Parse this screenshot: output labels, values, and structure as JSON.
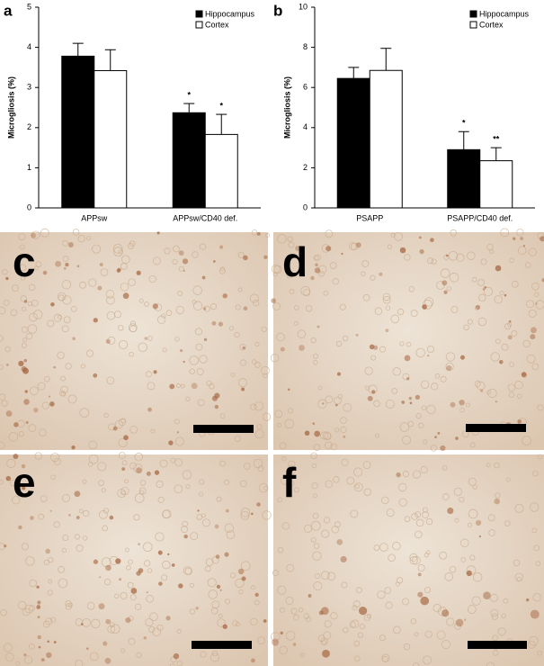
{
  "chart_data": [
    {
      "type": "bar",
      "panel": "a",
      "ylabel": "Microgliosis (%)",
      "categories": [
        "APPsw",
        "APPsw/CD40 def."
      ],
      "series": [
        {
          "name": "Hippocampus",
          "color": "#000000",
          "values": [
            3.78,
            2.37
          ],
          "errors": [
            0.32,
            0.23
          ],
          "marks": [
            null,
            "*"
          ]
        },
        {
          "name": "Cortex",
          "color": "#ffffff",
          "values": [
            3.42,
            1.83
          ],
          "errors": [
            0.52,
            0.5
          ],
          "marks": [
            null,
            "*"
          ]
        }
      ],
      "ylim": [
        0,
        5
      ],
      "yticks": [
        0,
        1,
        2,
        3,
        4,
        5
      ],
      "legend": "upper right"
    },
    {
      "type": "bar",
      "panel": "b",
      "ylabel": "Microgliosis (%)",
      "categories": [
        "PSAPP",
        "PSAPP/CD40 def."
      ],
      "series": [
        {
          "name": "Hippocampus",
          "color": "#000000",
          "values": [
            6.45,
            2.9
          ],
          "errors": [
            0.55,
            0.9
          ],
          "marks": [
            null,
            "*"
          ]
        },
        {
          "name": "Cortex",
          "color": "#ffffff",
          "values": [
            6.85,
            2.35
          ],
          "errors": [
            1.1,
            0.65
          ],
          "marks": [
            null,
            "**"
          ]
        }
      ],
      "ylim": [
        0,
        10
      ],
      "yticks": [
        0,
        2,
        4,
        6,
        8,
        10
      ],
      "legend": "upper right"
    }
  ],
  "images": [
    {
      "label": "c"
    },
    {
      "label": "d"
    },
    {
      "label": "e"
    },
    {
      "label": "f"
    }
  ]
}
